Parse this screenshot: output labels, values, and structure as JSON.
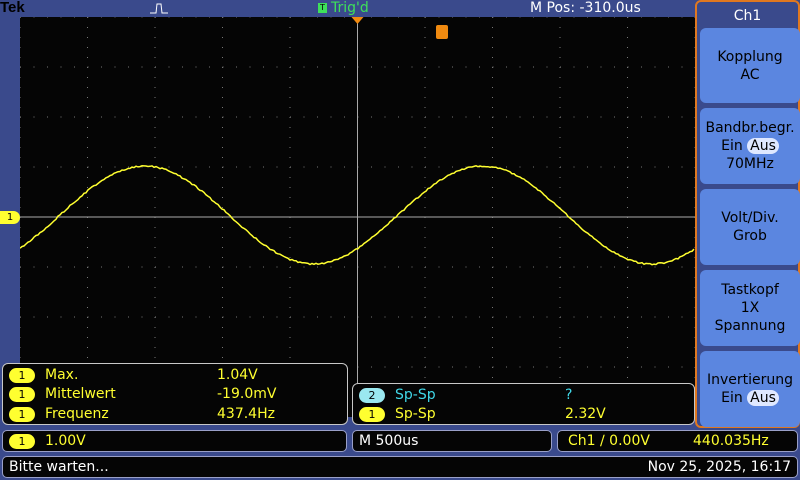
{
  "header": {
    "brand": "Tek",
    "trigger_status": "Trig'd",
    "trigger_icon": "T",
    "m_pos": "M Pos: -310.0us"
  },
  "colors": {
    "ch1": "#ffff30",
    "ch2": "#40d8e8",
    "trig": "#3ee05a",
    "marker": "#f08a10"
  },
  "side_menu": {
    "title": "Ch1",
    "buttons": [
      {
        "title": "Kopplung",
        "value": "AC"
      },
      {
        "title": "Bandbr.begr.",
        "on": "Ein",
        "off": "Aus",
        "value": "70MHz"
      },
      {
        "title": "Volt/Div.",
        "value": "Grob"
      },
      {
        "title": "Tastkopf",
        "value": "1X",
        "extra": "Spannung"
      },
      {
        "title": "Invertierung",
        "on": "Ein",
        "off": "Aus"
      }
    ]
  },
  "measurements": [
    {
      "ch": "1",
      "name": "Max.",
      "value": "1.04V"
    },
    {
      "ch": "1",
      "name": "Mittelwert",
      "value": "-19.0mV"
    },
    {
      "ch": "1",
      "name": "Frequenz",
      "value": "437.4Hz"
    }
  ],
  "measurements2": [
    {
      "ch": "2",
      "name": "Sp-Sp",
      "value": "?"
    },
    {
      "ch": "1",
      "name": "Sp-Sp",
      "value": "2.32V"
    }
  ],
  "status": {
    "ch1_scale": "1.00V",
    "ch1_label": "1",
    "timebase": "M 500us",
    "trigger": "Ch1 ∕ 0.00V",
    "trigger_freq": "440.035Hz",
    "message": "Bitte warten...",
    "datetime": "Nov 25, 2025, 16:17"
  },
  "channel_marker": "1"
}
